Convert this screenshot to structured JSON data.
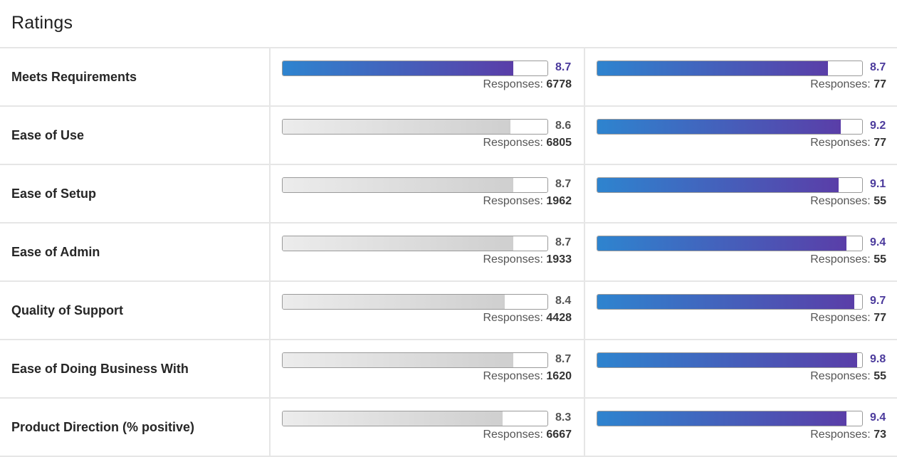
{
  "title": "Ratings",
  "responses_label": "Responses:",
  "colors": {
    "accent_start": "#2e84cf",
    "accent_end": "#5a3ea8",
    "neutral": "#cfcfcf"
  },
  "rows": [
    {
      "label": "Meets Requirements",
      "a": {
        "score": "8.7",
        "responses": "6778",
        "fill": 0.87,
        "highlight": true
      },
      "b": {
        "score": "8.7",
        "responses": "77",
        "fill": 0.87,
        "highlight": true
      }
    },
    {
      "label": "Ease of Use",
      "a": {
        "score": "8.6",
        "responses": "6805",
        "fill": 0.86,
        "highlight": false
      },
      "b": {
        "score": "9.2",
        "responses": "77",
        "fill": 0.92,
        "highlight": true
      }
    },
    {
      "label": "Ease of Setup",
      "a": {
        "score": "8.7",
        "responses": "1962",
        "fill": 0.87,
        "highlight": false
      },
      "b": {
        "score": "9.1",
        "responses": "55",
        "fill": 0.91,
        "highlight": true
      }
    },
    {
      "label": "Ease of Admin",
      "a": {
        "score": "8.7",
        "responses": "1933",
        "fill": 0.87,
        "highlight": false
      },
      "b": {
        "score": "9.4",
        "responses": "55",
        "fill": 0.94,
        "highlight": true
      }
    },
    {
      "label": "Quality of Support",
      "a": {
        "score": "8.4",
        "responses": "4428",
        "fill": 0.84,
        "highlight": false
      },
      "b": {
        "score": "9.7",
        "responses": "77",
        "fill": 0.97,
        "highlight": true
      }
    },
    {
      "label": "Ease of Doing Business With",
      "a": {
        "score": "8.7",
        "responses": "1620",
        "fill": 0.87,
        "highlight": false
      },
      "b": {
        "score": "9.8",
        "responses": "55",
        "fill": 0.98,
        "highlight": true
      }
    },
    {
      "label": "Product Direction (% positive)",
      "a": {
        "score": "8.3",
        "responses": "6667",
        "fill": 0.83,
        "highlight": false
      },
      "b": {
        "score": "9.4",
        "responses": "73",
        "fill": 0.94,
        "highlight": true
      }
    }
  ]
}
